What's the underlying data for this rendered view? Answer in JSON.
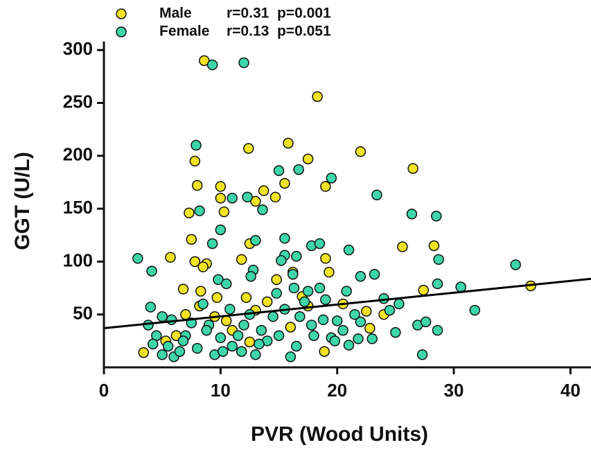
{
  "chart_data": {
    "type": "scatter",
    "xlabel": "PVR (Wood Units)",
    "ylabel": "GGT (U/L)",
    "xlim": [
      0,
      42
    ],
    "ylim": [
      0,
      308
    ],
    "xticks": [
      0,
      10,
      20,
      30,
      40
    ],
    "yticks": [
      50,
      100,
      150,
      200,
      250,
      300
    ],
    "series": [
      {
        "name": "Male",
        "stats": "r=0.31  p=0.001",
        "color": "#f2e424",
        "x": [
          8.6,
          18.3,
          12.4,
          15.8,
          22,
          17.5,
          7.8,
          26.5,
          8,
          10,
          13.7,
          19,
          15.5,
          10,
          13,
          14.7,
          7.3,
          10.3,
          12.5,
          7.5,
          5.7,
          11.8,
          7.8,
          8.8,
          8.5,
          16.2,
          19.3,
          19,
          25.6,
          28.3,
          9.7,
          12.2,
          14.8,
          17,
          6.8,
          8.3,
          27.4,
          36.6,
          24,
          22.5,
          3.4,
          18.9,
          5.3,
          9.5,
          13,
          16,
          20.5,
          11,
          7,
          17.5,
          22.8,
          14,
          10.5,
          8.2,
          6.2,
          12.5
        ],
        "y": [
          290,
          256,
          207,
          212,
          204,
          197,
          195,
          188,
          172,
          171,
          167,
          171,
          174,
          160,
          157,
          161,
          146,
          147,
          117,
          121,
          104,
          102,
          100,
          98,
          95,
          90,
          90,
          103,
          114,
          115,
          66,
          66,
          83,
          67,
          74,
          72,
          73,
          77,
          50,
          53,
          14,
          15,
          25,
          48,
          54,
          38,
          60,
          35,
          50,
          58,
          37,
          62,
          44,
          58,
          30,
          24
        ]
      },
      {
        "name": "Female",
        "stats": "r=0.13  p=0.051",
        "color": "#3ed6a8",
        "x": [
          9.3,
          12,
          7.9,
          15,
          16.7,
          19.5,
          12.3,
          13.6,
          8.2,
          9.3,
          10,
          11,
          23.4,
          26.4,
          28.5,
          2.9,
          4.1,
          15.5,
          13,
          17.8,
          18.5,
          15.5,
          16.5,
          21,
          22,
          23.2,
          28.7,
          35.3,
          12.8,
          12.6,
          9.8,
          10.5,
          15.2,
          16.2,
          17.5,
          18.5,
          20.8,
          24,
          28.6,
          30.6,
          31.8,
          26.9,
          27.6,
          28.6,
          27.3,
          25.3,
          25,
          24.5,
          22,
          21.8,
          21,
          20,
          19.5,
          18,
          17.2,
          16.5,
          16,
          15,
          14,
          13,
          12,
          11,
          10,
          9,
          8,
          7,
          6,
          5.5,
          4.5,
          4,
          5,
          6.5,
          7.5,
          8.5,
          9.5,
          10.8,
          11.5,
          12.5,
          13.5,
          14.5,
          15.5,
          16.8,
          17.8,
          18.8,
          19.8,
          20.5,
          21.5,
          23,
          4.2,
          5.8,
          6.8,
          8.8,
          10.2,
          11.8,
          13.3,
          14.8,
          16.3,
          19,
          3.8,
          5
        ],
        "y": [
          286,
          288,
          210,
          186,
          187,
          179,
          161,
          149,
          148,
          117,
          130,
          160,
          163,
          145,
          143,
          103,
          91,
          122,
          120,
          115,
          117,
          106,
          105,
          111,
          86,
          88,
          102,
          97,
          92,
          86,
          83,
          79,
          101,
          88,
          72,
          75,
          72,
          65,
          79,
          76,
          54,
          40,
          43,
          35,
          12,
          60,
          33,
          54,
          43,
          27,
          21,
          44,
          28,
          30,
          62,
          20,
          10,
          30,
          25,
          12,
          40,
          20,
          28,
          40,
          18,
          30,
          10,
          20,
          30,
          57,
          12,
          15,
          42,
          60,
          12,
          55,
          30,
          50,
          35,
          48,
          55,
          48,
          40,
          45,
          25,
          35,
          50,
          27,
          22,
          45,
          25,
          35,
          15,
          15,
          22,
          70,
          75,
          64,
          40,
          48
        ]
      }
    ],
    "fit_line": {
      "x": [
        0,
        42
      ],
      "y": [
        37,
        84
      ],
      "color": "#000000"
    }
  }
}
